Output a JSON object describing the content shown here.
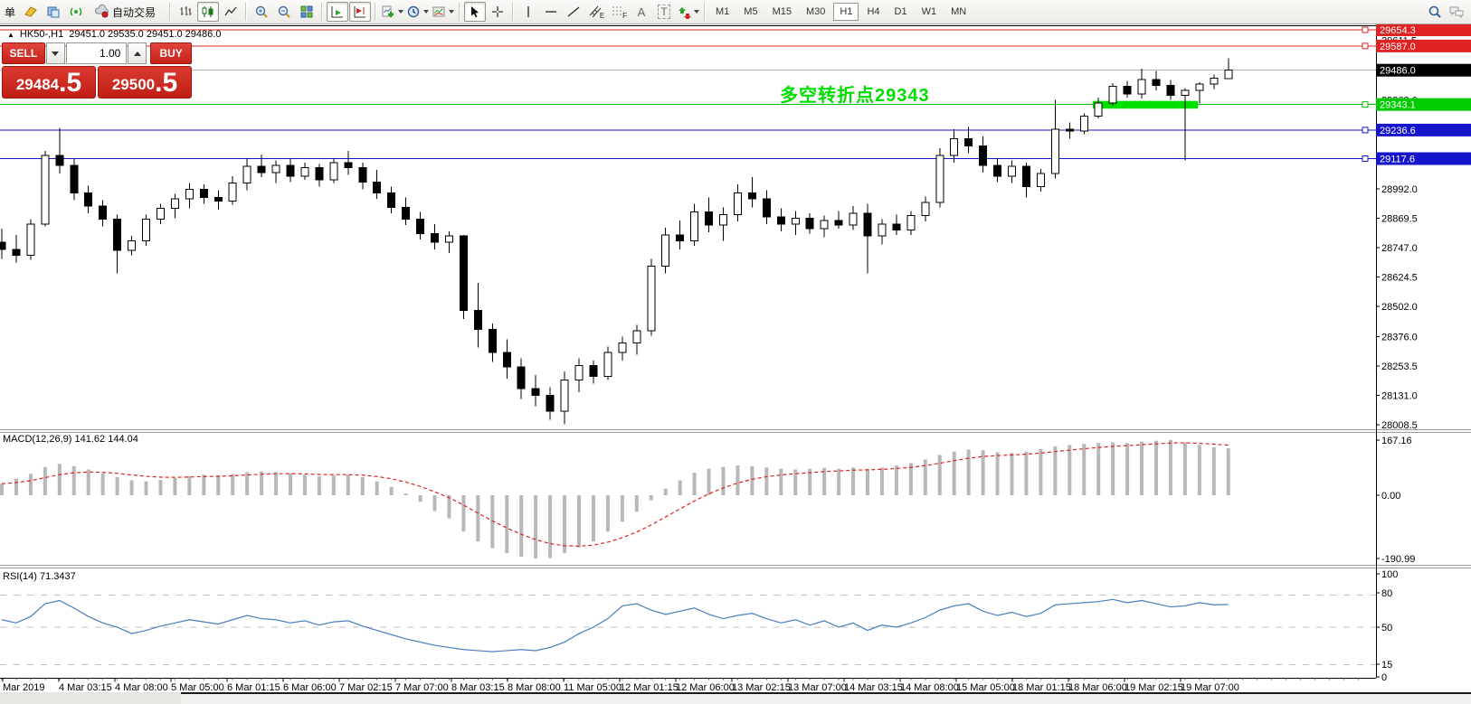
{
  "toolbar": {
    "new_order_partial": "单",
    "auto_trading": "自动交易",
    "letters": {
      "text_tool": "A",
      "label_tool": "T",
      "channel_sub": "E",
      "fibo_sub": "F"
    },
    "timeframes": [
      "M1",
      "M5",
      "M15",
      "M30",
      "H1",
      "H4",
      "D1",
      "W1",
      "MN"
    ],
    "active_timeframe": "H1"
  },
  "chart_title": {
    "window_marker": "▲",
    "symbol": "HK50-,H1",
    "ohlc": "29451.0 29535.0 29451.0 29486.0"
  },
  "trade_panel": {
    "sell_label": "SELL",
    "buy_label": "BUY",
    "volume": "1.00",
    "sell_price_main": "29484",
    "sell_price_frac": ".5",
    "buy_price_main": "29500",
    "buy_price_frac": ".5"
  },
  "annotation": {
    "text": "多空转折点29343",
    "color": "#00dd00"
  },
  "indicators": {
    "macd": {
      "label": "MACD(12,26,9)",
      "value_main": "141.62",
      "value_signal": "144.04",
      "axis": [
        "167.16",
        "0.00",
        "-190.99"
      ]
    },
    "rsi": {
      "label": "RSI(14)",
      "value": "71.3437",
      "axis": [
        "100",
        "80",
        "50",
        "15",
        "0"
      ]
    }
  },
  "price_axis": {
    "ticks": [
      {
        "label": "29611.5",
        "price": 29611.5
      },
      {
        "label": "29363.0",
        "price": 29363.0
      },
      {
        "label": "28992.0",
        "price": 28992.0
      },
      {
        "label": "28869.5",
        "price": 28869.5
      },
      {
        "label": "28747.0",
        "price": 28747.0
      },
      {
        "label": "28624.5",
        "price": 28624.5
      },
      {
        "label": "28502.0",
        "price": 28502.0
      },
      {
        "label": "28376.0",
        "price": 28376.0
      },
      {
        "label": "28253.5",
        "price": 28253.5
      },
      {
        "label": "28131.0",
        "price": 28131.0
      },
      {
        "label": "28008.5",
        "price": 28008.5
      }
    ]
  },
  "levels": [
    {
      "price": 29654.3,
      "label": "29654.3",
      "color": "#e02222",
      "badge_bg": "#e02222",
      "handle": true
    },
    {
      "price": 29587.0,
      "label": "29587.0",
      "color": "#e02222",
      "badge_bg": "#e02222",
      "handle": true
    },
    {
      "price": 29486.0,
      "label": "29486.0",
      "color": "#b4b4b4",
      "badge_bg": "#000000",
      "handle": false
    },
    {
      "price": 29343.1,
      "label": "29343.1",
      "color": "#00c000",
      "badge_bg": "#00cc00",
      "handle": true
    },
    {
      "price": 29236.6,
      "label": "29236.6",
      "color": "#1515cc",
      "badge_bg": "#1515cc",
      "handle": true
    },
    {
      "price": 29117.6,
      "label": "29117.6",
      "color": "#1515cc",
      "badge_bg": "#1515cc",
      "handle": true
    }
  ],
  "time_axis": {
    "labels": [
      "Mar 2019",
      "4 Mar 03:15",
      "4 Mar 08:00",
      "5 Mar 05:00",
      "6 Mar 01:15",
      "6 Mar 06:00",
      "7 Mar 02:15",
      "7 Mar 07:00",
      "8 Mar 03:15",
      "8 Mar 08:00",
      "11 Mar 05:00",
      "12 Mar 01:15",
      "12 Mar 06:00",
      "13 Mar 02:15",
      "13 Mar 07:00",
      "14 Mar 03:15",
      "14 Mar 08:00",
      "15 Mar 05:00",
      "18 Mar 01:15",
      "18 Mar 06:00",
      "19 Mar 02:15",
      "19 Mar 07:00"
    ]
  },
  "chart_data": {
    "type": "candlestick",
    "symbol": "HK50-",
    "timeframe": "H1",
    "price_ylim": [
      28008.5,
      29654.3
    ],
    "current_price": 29486.0,
    "highlight_zone": {
      "from_bar": 75.6,
      "to_bar": 82.9,
      "top_price": 29358,
      "bottom_price": 29326,
      "color": "#00e000"
    },
    "candles": [
      [
        28770,
        28825,
        28700,
        28740
      ],
      [
        28740,
        28800,
        28685,
        28715
      ],
      [
        28715,
        28865,
        28695,
        28845
      ],
      [
        28845,
        29150,
        28835,
        29131
      ],
      [
        29131,
        29245,
        29055,
        29090
      ],
      [
        29090,
        29115,
        28945,
        28975
      ],
      [
        28975,
        29005,
        28890,
        28920
      ],
      [
        28920,
        28945,
        28835,
        28865
      ],
      [
        28865,
        28885,
        28640,
        28735
      ],
      [
        28735,
        28795,
        28715,
        28775
      ],
      [
        28775,
        28885,
        28755,
        28865
      ],
      [
        28865,
        28930,
        28845,
        28910
      ],
      [
        28910,
        28970,
        28870,
        28950
      ],
      [
        28950,
        29015,
        28910,
        28990
      ],
      [
        28990,
        29010,
        28930,
        28955
      ],
      [
        28955,
        28985,
        28905,
        28940
      ],
      [
        28940,
        29045,
        28925,
        29015
      ],
      [
        29015,
        29120,
        28985,
        29085
      ],
      [
        29085,
        29135,
        29040,
        29060
      ],
      [
        29060,
        29110,
        29015,
        29090
      ],
      [
        29090,
        29118,
        29020,
        29045
      ],
      [
        29045,
        29100,
        29030,
        29080
      ],
      [
        29080,
        29095,
        29000,
        29030
      ],
      [
        29030,
        29120,
        29015,
        29100
      ],
      [
        29100,
        29150,
        29050,
        29080
      ],
      [
        29080,
        29100,
        28990,
        29020
      ],
      [
        29020,
        29070,
        28950,
        28975
      ],
      [
        28975,
        29000,
        28890,
        28915
      ],
      [
        28915,
        28955,
        28840,
        28865
      ],
      [
        28865,
        28895,
        28780,
        28805
      ],
      [
        28805,
        28845,
        28740,
        28770
      ],
      [
        28770,
        28815,
        28725,
        28795
      ],
      [
        28795,
        28800,
        28450,
        28485
      ],
      [
        28485,
        28600,
        28330,
        28405
      ],
      [
        28405,
        28430,
        28270,
        28310
      ],
      [
        28310,
        28365,
        28200,
        28250
      ],
      [
        28250,
        28285,
        28115,
        28160
      ],
      [
        28160,
        28215,
        28085,
        28130
      ],
      [
        28130,
        28165,
        28030,
        28065
      ],
      [
        28065,
        28230,
        28010,
        28195
      ],
      [
        28195,
        28285,
        28145,
        28255
      ],
      [
        28255,
        28275,
        28180,
        28210
      ],
      [
        28210,
        28335,
        28195,
        28310
      ],
      [
        28310,
        28375,
        28275,
        28350
      ],
      [
        28350,
        28425,
        28300,
        28400
      ],
      [
        28400,
        28700,
        28380,
        28670
      ],
      [
        28670,
        28830,
        28640,
        28800
      ],
      [
        28800,
        28860,
        28740,
        28775
      ],
      [
        28775,
        28930,
        28755,
        28895
      ],
      [
        28895,
        28955,
        28810,
        28840
      ],
      [
        28840,
        28915,
        28775,
        28885
      ],
      [
        28885,
        29010,
        28855,
        28975
      ],
      [
        28975,
        29040,
        28915,
        28950
      ],
      [
        28950,
        28985,
        28845,
        28875
      ],
      [
        28875,
        28910,
        28815,
        28845
      ],
      [
        28845,
        28900,
        28800,
        28870
      ],
      [
        28870,
        28890,
        28805,
        28825
      ],
      [
        28825,
        28880,
        28790,
        28860
      ],
      [
        28860,
        28900,
        28825,
        28840
      ],
      [
        28840,
        28920,
        28820,
        28890
      ],
      [
        28890,
        28930,
        28640,
        28795
      ],
      [
        28795,
        28865,
        28760,
        28845
      ],
      [
        28845,
        28885,
        28800,
        28820
      ],
      [
        28820,
        28900,
        28800,
        28880
      ],
      [
        28880,
        28960,
        28855,
        28935
      ],
      [
        28935,
        29160,
        28915,
        29130
      ],
      [
        29130,
        29240,
        29100,
        29200
      ],
      [
        29200,
        29250,
        29140,
        29170
      ],
      [
        29170,
        29210,
        29060,
        29090
      ],
      [
        29090,
        29120,
        29020,
        29045
      ],
      [
        29045,
        29110,
        29015,
        29085
      ],
      [
        29085,
        29100,
        28955,
        29000
      ],
      [
        29000,
        29075,
        28980,
        29055
      ],
      [
        29055,
        29362,
        29035,
        29240
      ],
      [
        29240,
        29268,
        29200,
        29232
      ],
      [
        29232,
        29305,
        29220,
        29295
      ],
      [
        29295,
        29372,
        29285,
        29350
      ],
      [
        29350,
        29432,
        29338,
        29418
      ],
      [
        29418,
        29442,
        29372,
        29386
      ],
      [
        29386,
        29492,
        29368,
        29448
      ],
      [
        29448,
        29482,
        29402,
        29422
      ],
      [
        29422,
        29445,
        29362,
        29382
      ],
      [
        29382,
        29412,
        29110,
        29402
      ],
      [
        29402,
        29435,
        29348,
        29428
      ],
      [
        29428,
        29468,
        29408,
        29452
      ],
      [
        29451,
        29535,
        29451,
        29486
      ]
    ],
    "macd": {
      "params": "12,26,9",
      "ylim": [
        -190.99,
        167.16
      ],
      "histogram": [
        35,
        50,
        65,
        85,
        95,
        88,
        78,
        66,
        55,
        45,
        42,
        46,
        52,
        58,
        62,
        60,
        64,
        70,
        72,
        70,
        66,
        62,
        57,
        60,
        63,
        55,
        42,
        25,
        5,
        -20,
        -48,
        -70,
        -110,
        -140,
        -160,
        -175,
        -186,
        -191,
        -190,
        -175,
        -158,
        -140,
        -110,
        -80,
        -50,
        -15,
        20,
        45,
        68,
        80,
        86,
        90,
        88,
        84,
        80,
        78,
        80,
        83,
        80,
        84,
        80,
        84,
        90,
        97,
        108,
        122,
        132,
        138,
        136,
        130,
        128,
        132,
        140,
        148,
        152,
        155,
        158,
        160,
        158,
        162,
        165,
        167,
        160,
        152,
        145,
        142
      ]
    },
    "rsi": {
      "period": 14,
      "ylim": [
        0,
        100
      ],
      "levels": [
        80,
        50,
        15
      ],
      "series": [
        57,
        54,
        60,
        72,
        75,
        68,
        60,
        54,
        50,
        44,
        47,
        51,
        54,
        57,
        55,
        53,
        57,
        61,
        58,
        57,
        54,
        56,
        52,
        55,
        56,
        51,
        47,
        43,
        39,
        36,
        33,
        31,
        29,
        28,
        27,
        28,
        29,
        28,
        31,
        36,
        44,
        50,
        58,
        70,
        72,
        66,
        62,
        65,
        68,
        62,
        58,
        61,
        63,
        58,
        54,
        57,
        52,
        56,
        50,
        54,
        47,
        52,
        50,
        54,
        59,
        66,
        70,
        72,
        65,
        61,
        64,
        60,
        63,
        71,
        72,
        73,
        74,
        76,
        73,
        75,
        72,
        69,
        70,
        73,
        71,
        71.3
      ]
    }
  }
}
